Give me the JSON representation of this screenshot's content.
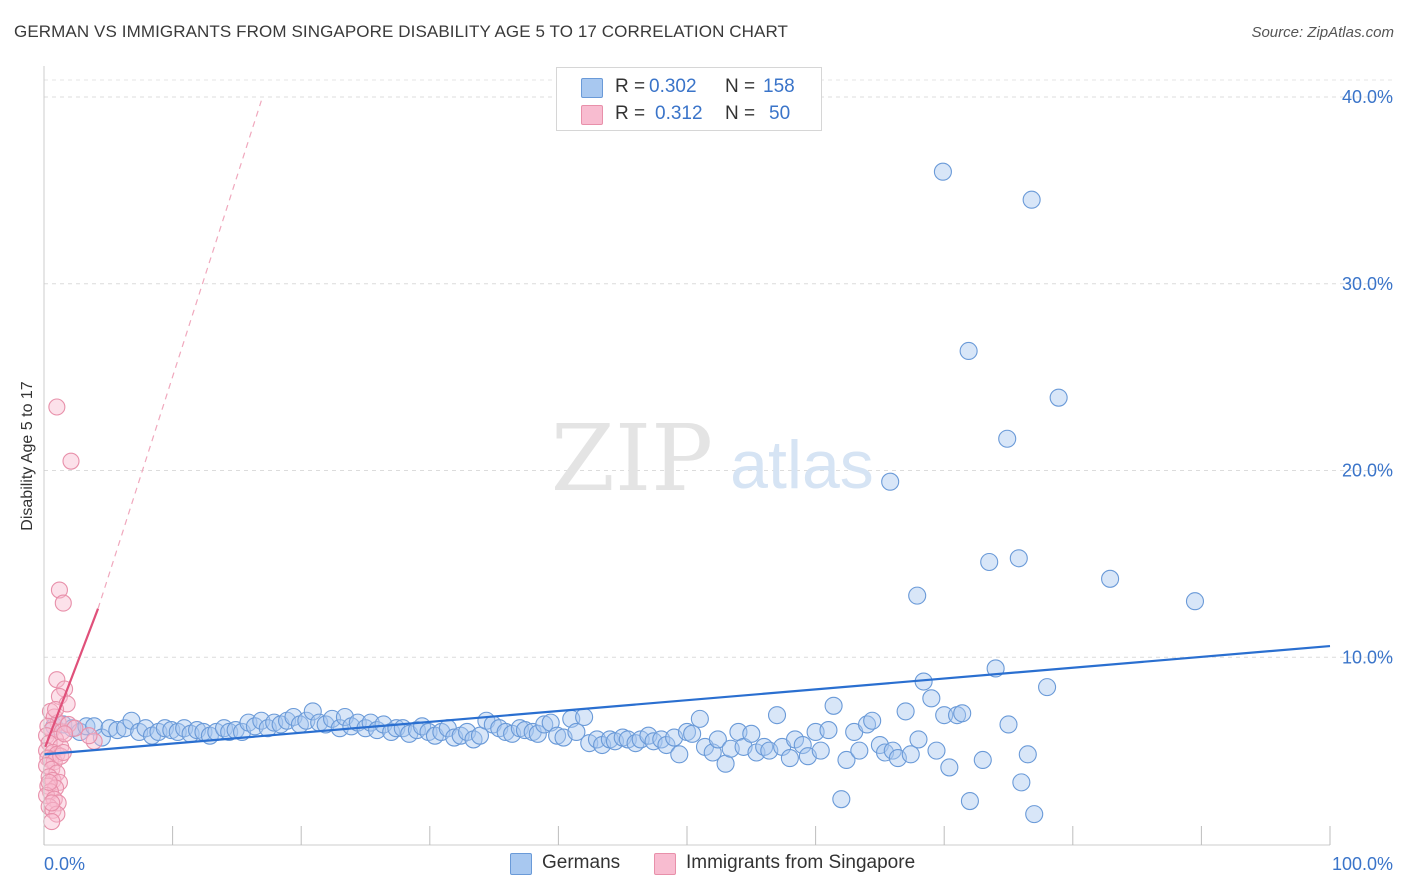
{
  "header": {
    "title": "GERMAN VS IMMIGRANTS FROM SINGAPORE DISABILITY AGE 5 TO 17 CORRELATION CHART",
    "source": "Source: ZipAtlas.com"
  },
  "watermark": {
    "zip": "ZIP",
    "atlas": "atlas"
  },
  "legend": {
    "rows": [
      {
        "r_label": "R =",
        "r_value": "0.302",
        "n_label": "N =",
        "n_value": "158",
        "color": "#a8c8f0",
        "border": "#6a9ad8"
      },
      {
        "r_label": "R =",
        "r_value": "0.312",
        "n_label": "N =",
        "n_value": "50",
        "color": "#f8bcd0",
        "border": "#e890aa"
      }
    ]
  },
  "bottom_legend": [
    {
      "label": "Germans",
      "color": "#a8c8f0",
      "border": "#6a9ad8"
    },
    {
      "label": "Immigrants from Singapore",
      "color": "#f8bcd0",
      "border": "#e890aa"
    }
  ],
  "chart_data": {
    "type": "scatter",
    "title": "GERMAN VS IMMIGRANTS FROM SINGAPORE DISABILITY AGE 5 TO 17 CORRELATION CHART",
    "xlabel": "",
    "ylabel": "Disability Age 5 to 17",
    "xlim": [
      0,
      100
    ],
    "ylim": [
      0,
      42
    ],
    "x_tick_labels": [
      "0.0%",
      "100.0%"
    ],
    "y_tick_labels": [
      "10.0%",
      "20.0%",
      "30.0%",
      "40.0%"
    ],
    "y_ticks": [
      10,
      20,
      30,
      40
    ],
    "x_minor_ticks": [
      0,
      10,
      20,
      30,
      40,
      50,
      60,
      70,
      80,
      90,
      100
    ],
    "grid": "horizontal dashed",
    "colors": {
      "germans": "#6a9ad8",
      "germans_fill": "rgba(168,200,240,0.45)",
      "singapore": "#e890aa",
      "singapore_fill": "rgba(248,188,208,0.45)",
      "germans_trend": "#2a6fd0",
      "singapore_trend": "#e0507a",
      "tick_label": "#3a74c9"
    },
    "series": [
      {
        "name": "Germans",
        "trend": {
          "x": [
            0,
            100
          ],
          "y": [
            4.8,
            10.6
          ]
        },
        "points": [
          [
            0.8,
            6.3
          ],
          [
            1.5,
            6.4
          ],
          [
            2.2,
            6.2
          ],
          [
            2.8,
            6.0
          ],
          [
            3.3,
            6.3
          ],
          [
            3.9,
            6.3
          ],
          [
            4.5,
            5.7
          ],
          [
            5.1,
            6.2
          ],
          [
            5.7,
            6.1
          ],
          [
            6.3,
            6.2
          ],
          [
            6.8,
            6.6
          ],
          [
            7.4,
            6.0
          ],
          [
            7.9,
            6.2
          ],
          [
            8.4,
            5.8
          ],
          [
            8.9,
            6.0
          ],
          [
            9.4,
            6.2
          ],
          [
            9.9,
            6.1
          ],
          [
            10.4,
            6.0
          ],
          [
            10.9,
            6.2
          ],
          [
            11.4,
            5.9
          ],
          [
            11.9,
            6.1
          ],
          [
            12.4,
            6.0
          ],
          [
            12.9,
            5.8
          ],
          [
            13.4,
            6.0
          ],
          [
            14.0,
            6.2
          ],
          [
            14.4,
            6.0
          ],
          [
            14.9,
            6.1
          ],
          [
            15.4,
            6.0
          ],
          [
            15.9,
            6.5
          ],
          [
            16.4,
            6.3
          ],
          [
            16.9,
            6.6
          ],
          [
            17.4,
            6.2
          ],
          [
            17.9,
            6.5
          ],
          [
            18.4,
            6.4
          ],
          [
            18.9,
            6.6
          ],
          [
            19.4,
            6.8
          ],
          [
            19.9,
            6.4
          ],
          [
            20.4,
            6.6
          ],
          [
            20.9,
            7.1
          ],
          [
            21.4,
            6.5
          ],
          [
            21.9,
            6.4
          ],
          [
            22.4,
            6.7
          ],
          [
            23.0,
            6.2
          ],
          [
            23.4,
            6.8
          ],
          [
            23.9,
            6.3
          ],
          [
            24.4,
            6.5
          ],
          [
            25.0,
            6.2
          ],
          [
            25.4,
            6.5
          ],
          [
            25.9,
            6.1
          ],
          [
            26.4,
            6.4
          ],
          [
            27.0,
            6.0
          ],
          [
            27.4,
            6.2
          ],
          [
            27.9,
            6.2
          ],
          [
            28.4,
            5.9
          ],
          [
            29.0,
            6.1
          ],
          [
            29.4,
            6.3
          ],
          [
            29.9,
            6.0
          ],
          [
            30.4,
            5.8
          ],
          [
            30.9,
            6.0
          ],
          [
            31.4,
            6.2
          ],
          [
            31.9,
            5.7
          ],
          [
            32.4,
            5.8
          ],
          [
            32.9,
            6.0
          ],
          [
            33.4,
            5.6
          ],
          [
            33.9,
            5.8
          ],
          [
            34.4,
            6.6
          ],
          [
            34.9,
            6.4
          ],
          [
            35.4,
            6.2
          ],
          [
            35.9,
            6.0
          ],
          [
            36.4,
            5.9
          ],
          [
            37.0,
            6.2
          ],
          [
            37.4,
            6.1
          ],
          [
            38.0,
            6.0
          ],
          [
            38.4,
            5.9
          ],
          [
            38.9,
            6.4
          ],
          [
            39.4,
            6.5
          ],
          [
            39.9,
            5.8
          ],
          [
            40.4,
            5.7
          ],
          [
            41.0,
            6.7
          ],
          [
            41.4,
            6.0
          ],
          [
            42.0,
            6.8
          ],
          [
            42.4,
            5.4
          ],
          [
            43.0,
            5.6
          ],
          [
            43.4,
            5.3
          ],
          [
            44.0,
            5.6
          ],
          [
            44.4,
            5.5
          ],
          [
            45.0,
            5.7
          ],
          [
            45.4,
            5.6
          ],
          [
            46.0,
            5.4
          ],
          [
            46.4,
            5.6
          ],
          [
            47.0,
            5.8
          ],
          [
            47.4,
            5.5
          ],
          [
            48.0,
            5.6
          ],
          [
            48.4,
            5.3
          ],
          [
            49.0,
            5.7
          ],
          [
            49.4,
            4.8
          ],
          [
            50.0,
            6.0
          ],
          [
            50.4,
            5.9
          ],
          [
            51.0,
            6.7
          ],
          [
            51.4,
            5.2
          ],
          [
            52.0,
            4.9
          ],
          [
            52.4,
            5.6
          ],
          [
            53.0,
            4.3
          ],
          [
            53.4,
            5.1
          ],
          [
            54.0,
            6.0
          ],
          [
            54.4,
            5.2
          ],
          [
            55.0,
            5.9
          ],
          [
            55.4,
            4.9
          ],
          [
            56.0,
            5.2
          ],
          [
            56.4,
            5.0
          ],
          [
            57.0,
            6.9
          ],
          [
            57.4,
            5.2
          ],
          [
            58.0,
            4.6
          ],
          [
            58.4,
            5.6
          ],
          [
            59.0,
            5.3
          ],
          [
            59.4,
            4.7
          ],
          [
            60.0,
            6.0
          ],
          [
            60.4,
            5.0
          ],
          [
            61.0,
            6.1
          ],
          [
            61.4,
            7.4
          ],
          [
            62.0,
            2.4
          ],
          [
            62.4,
            4.5
          ],
          [
            63.0,
            6.0
          ],
          [
            63.4,
            5.0
          ],
          [
            64.0,
            6.4
          ],
          [
            64.4,
            6.6
          ],
          [
            65.0,
            5.3
          ],
          [
            65.4,
            4.9
          ],
          [
            66.0,
            5.0
          ],
          [
            66.4,
            4.6
          ],
          [
            67.0,
            7.1
          ],
          [
            67.4,
            4.8
          ],
          [
            68.0,
            5.6
          ],
          [
            68.4,
            8.7
          ],
          [
            69.0,
            7.8
          ],
          [
            69.4,
            5.0
          ],
          [
            70.0,
            6.9
          ],
          [
            70.4,
            4.1
          ],
          [
            71.0,
            6.9
          ],
          [
            71.4,
            7.0
          ],
          [
            72.0,
            2.3
          ],
          [
            73.0,
            4.5
          ],
          [
            74.0,
            9.4
          ],
          [
            75.0,
            6.4
          ],
          [
            76.0,
            3.3
          ],
          [
            77.0,
            1.6
          ],
          [
            78.0,
            8.4
          ],
          [
            76.5,
            4.8
          ],
          [
            69.9,
            36.0
          ],
          [
            76.8,
            34.5
          ],
          [
            71.9,
            26.4
          ],
          [
            78.9,
            23.9
          ],
          [
            74.9,
            21.7
          ],
          [
            65.8,
            19.4
          ],
          [
            73.5,
            15.1
          ],
          [
            75.8,
            15.3
          ],
          [
            82.9,
            14.2
          ],
          [
            67.9,
            13.3
          ],
          [
            89.5,
            13.0
          ]
        ]
      },
      {
        "name": "Immigrants from Singapore",
        "trend": {
          "x": [
            0.1,
            4.2
          ],
          "y": [
            5.2,
            12.6
          ]
        },
        "trend_extension": {
          "x": [
            4.2,
            16.9
          ],
          "y": [
            12.6,
            39.8
          ]
        },
        "points": [
          [
            1.0,
            23.4
          ],
          [
            2.1,
            20.5
          ],
          [
            1.2,
            13.6
          ],
          [
            1.5,
            12.9
          ],
          [
            1.0,
            8.8
          ],
          [
            1.6,
            8.3
          ],
          [
            1.2,
            7.9
          ],
          [
            1.8,
            7.5
          ],
          [
            0.5,
            7.1
          ],
          [
            0.8,
            6.8
          ],
          [
            1.1,
            6.5
          ],
          [
            0.3,
            6.3
          ],
          [
            0.6,
            6.1
          ],
          [
            1.4,
            6.0
          ],
          [
            0.2,
            5.8
          ],
          [
            0.9,
            5.6
          ],
          [
            0.4,
            5.4
          ],
          [
            1.3,
            5.2
          ],
          [
            0.2,
            5.0
          ],
          [
            0.7,
            4.9
          ],
          [
            1.0,
            4.8
          ],
          [
            0.3,
            4.6
          ],
          [
            0.5,
            4.5
          ],
          [
            0.8,
            4.4
          ],
          [
            0.2,
            4.2
          ],
          [
            0.6,
            4.0
          ],
          [
            1.0,
            3.8
          ],
          [
            0.4,
            3.6
          ],
          [
            0.7,
            3.4
          ],
          [
            1.2,
            3.3
          ],
          [
            0.3,
            3.1
          ],
          [
            0.9,
            3.0
          ],
          [
            0.5,
            2.8
          ],
          [
            0.2,
            2.6
          ],
          [
            0.8,
            2.4
          ],
          [
            1.1,
            2.2
          ],
          [
            0.4,
            2.0
          ],
          [
            0.7,
            1.8
          ],
          [
            1.0,
            1.6
          ],
          [
            0.6,
            1.2
          ],
          [
            3.9,
            5.5
          ],
          [
            3.5,
            5.8
          ],
          [
            1.9,
            6.4
          ],
          [
            2.4,
            6.2
          ],
          [
            1.6,
            5.9
          ],
          [
            0.9,
            7.2
          ],
          [
            1.3,
            4.7
          ],
          [
            0.4,
            3.3
          ],
          [
            0.6,
            2.2
          ],
          [
            1.5,
            4.9
          ]
        ]
      }
    ]
  }
}
